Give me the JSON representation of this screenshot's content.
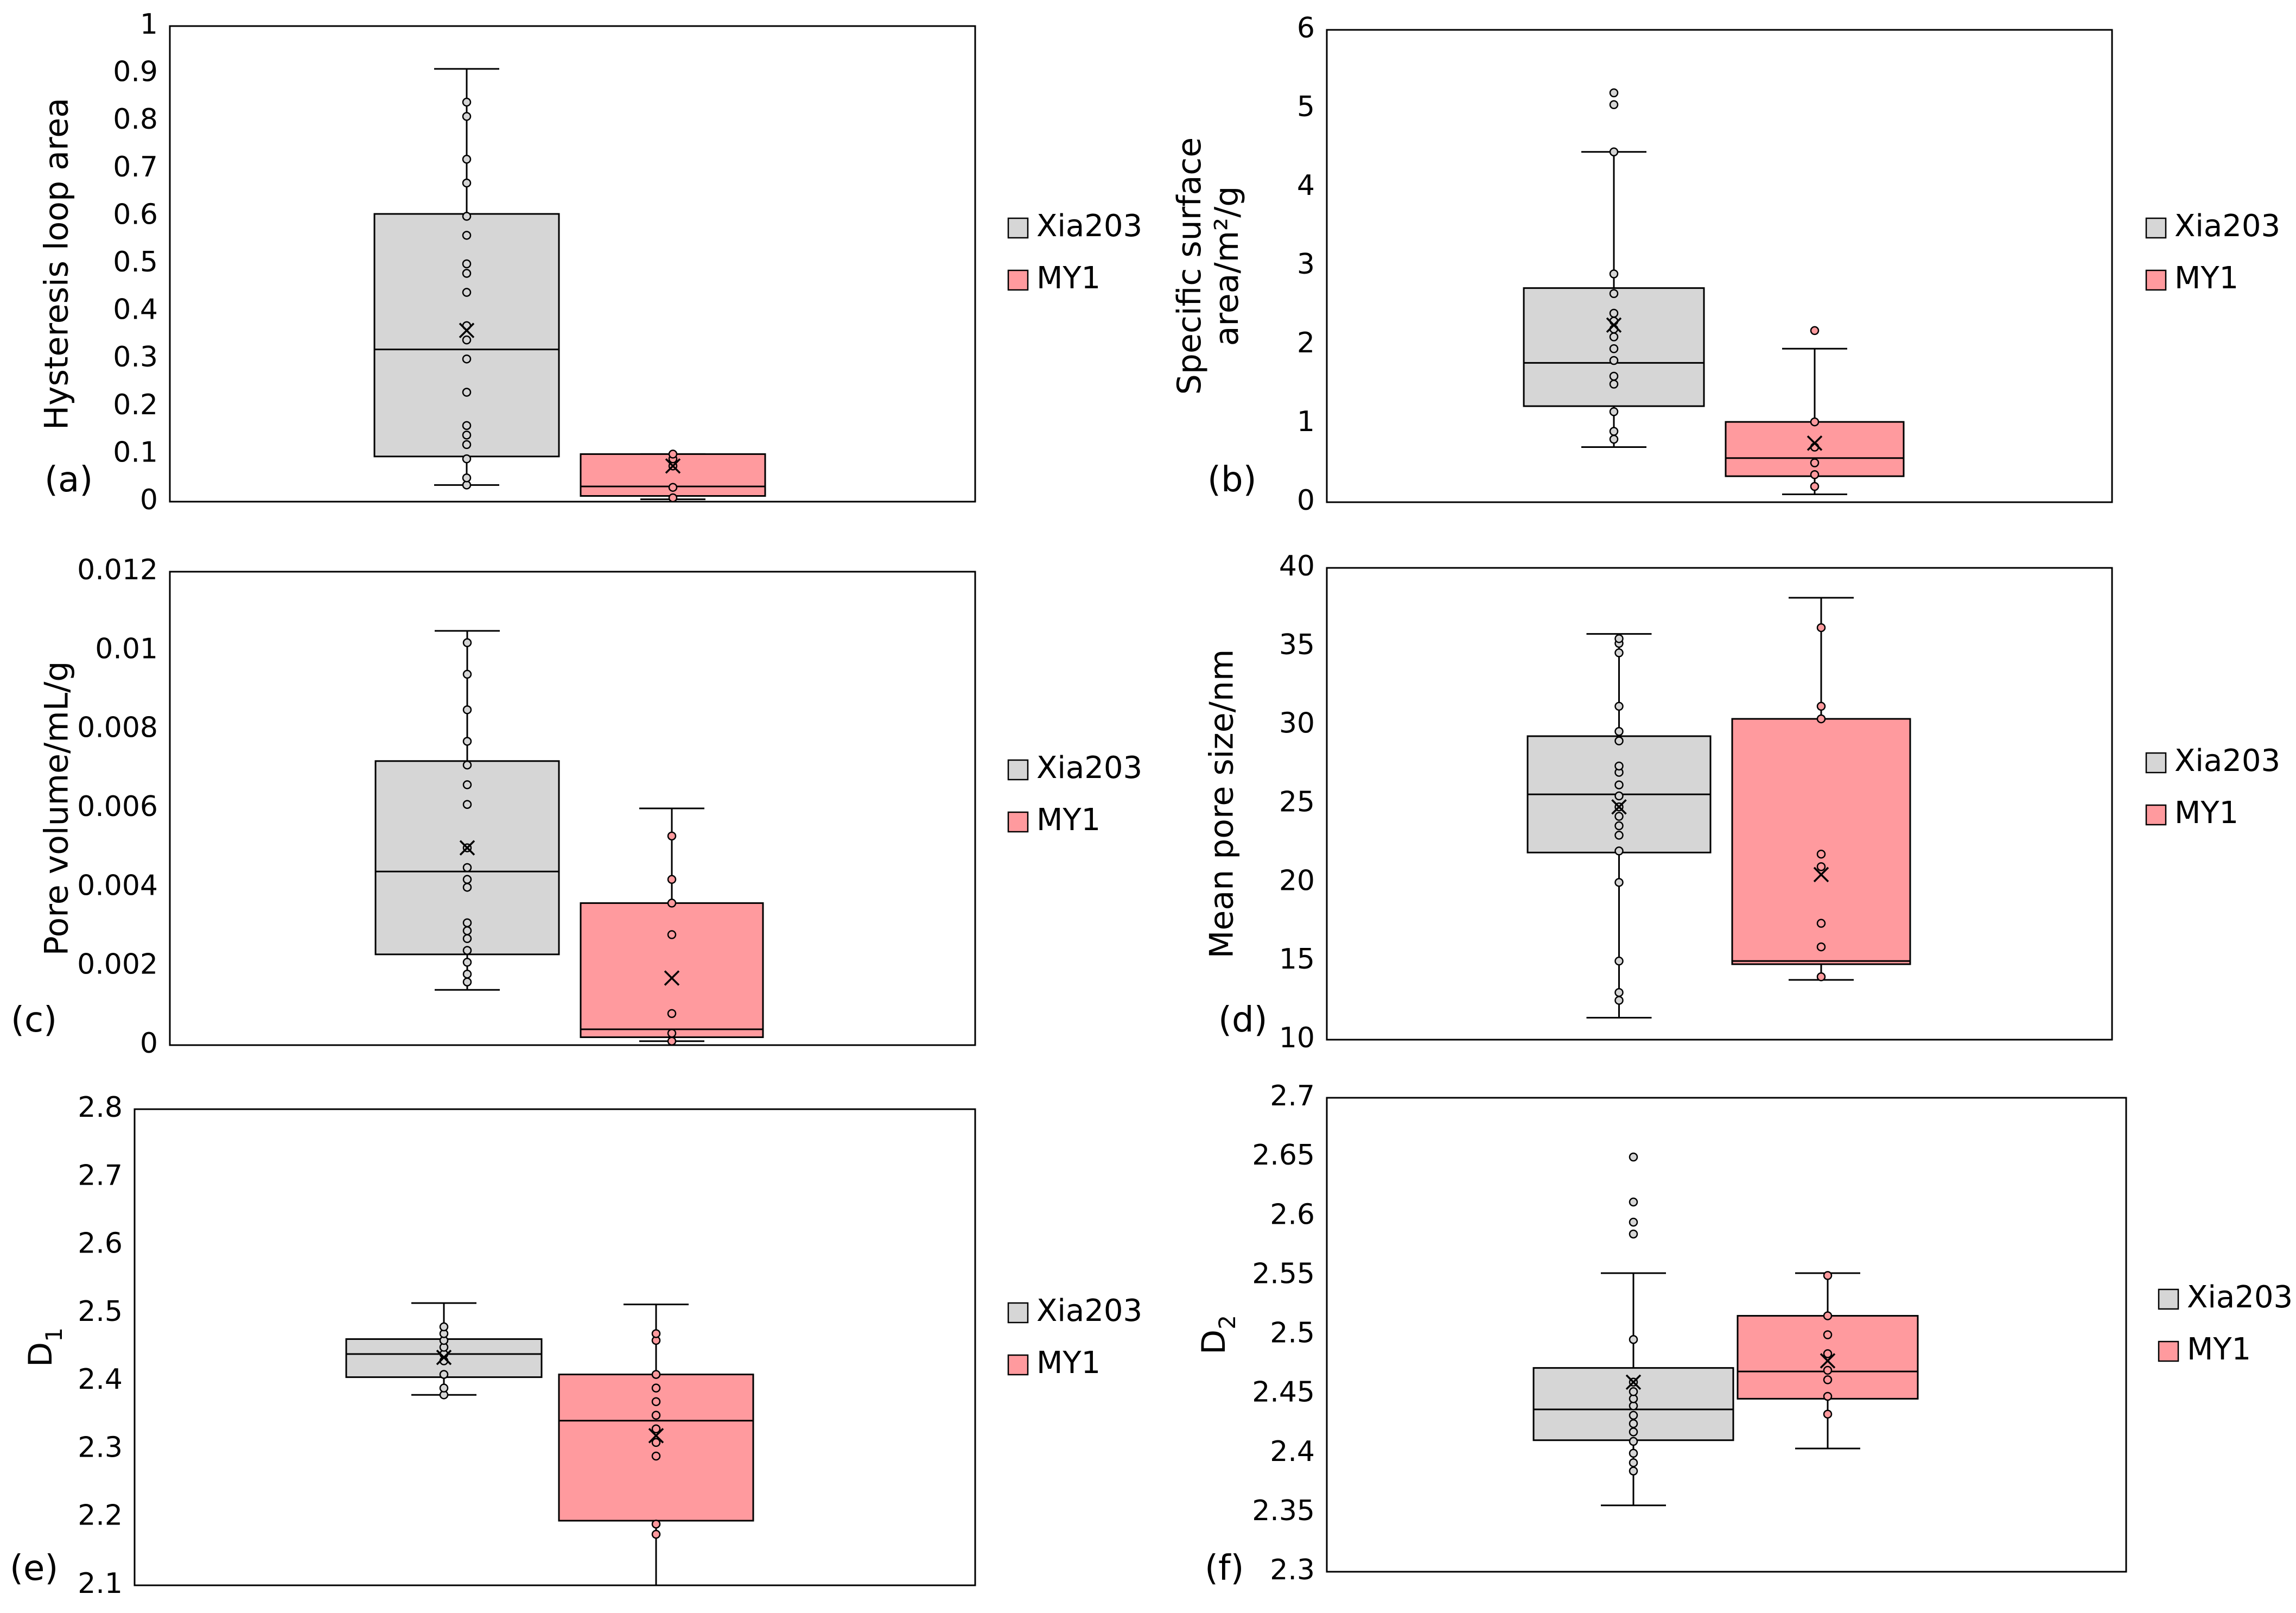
{
  "colors": {
    "xia203_fill": "#d6d6d6",
    "my1_fill": "#ff9a9e",
    "stroke": "#000000",
    "background": "#ffffff"
  },
  "legend": {
    "entries": [
      "Xia203",
      "MY1"
    ]
  },
  "chart_data": [
    {
      "id": "a",
      "panel_label": "(a)",
      "type": "box",
      "ylabel": "Hysteresis loop area",
      "ylim": [
        0,
        1
      ],
      "yticks": [
        "0",
        "0.1",
        "0.2",
        "0.3",
        "0.4",
        "0.5",
        "0.6",
        "0.7",
        "0.8",
        "0.9",
        "1"
      ],
      "legend_position": "right",
      "series": [
        {
          "name": "Xia203",
          "whisker_low": 0.035,
          "q1": 0.095,
          "median": 0.32,
          "q3": 0.605,
          "whisker_high": 0.91,
          "mean": 0.36,
          "points": [
            0.035,
            0.05,
            0.09,
            0.12,
            0.14,
            0.16,
            0.23,
            0.3,
            0.34,
            0.37,
            0.44,
            0.48,
            0.5,
            0.56,
            0.6,
            0.67,
            0.72,
            0.81,
            0.84
          ]
        },
        {
          "name": "MY1",
          "whisker_low": 0.005,
          "q1": 0.012,
          "median": 0.032,
          "q3": 0.1,
          "whisker_high": 0.1,
          "mean": 0.075,
          "points": [
            0.008,
            0.03,
            0.075,
            0.09,
            0.1
          ]
        }
      ]
    },
    {
      "id": "b",
      "panel_label": "(b)",
      "type": "box",
      "ylabel": "Specific surface area/m²/g",
      "ylim": [
        0,
        6
      ],
      "yticks": [
        "0",
        "1",
        "2",
        "3",
        "4",
        "5",
        "6"
      ],
      "legend_position": "right",
      "series": [
        {
          "name": "Xia203",
          "whisker_low": 0.7,
          "q1": 1.22,
          "median": 1.77,
          "q3": 2.72,
          "whisker_high": 4.45,
          "mean": 2.25,
          "points": [
            0.8,
            0.9,
            1.15,
            1.5,
            1.6,
            1.8,
            1.95,
            2.1,
            2.2,
            2.3,
            2.4,
            2.65,
            2.9,
            4.45,
            5.05,
            5.2
          ]
        },
        {
          "name": "MY1",
          "whisker_low": 0.1,
          "q1": 0.33,
          "median": 0.56,
          "q3": 1.02,
          "whisker_high": 1.95,
          "mean": 0.75,
          "points": [
            0.2,
            0.35,
            0.5,
            0.7,
            1.02,
            2.18
          ]
        }
      ]
    },
    {
      "id": "c",
      "panel_label": "(c)",
      "type": "box",
      "ylabel": "Pore volume/mL/g",
      "ylim": [
        0,
        0.012
      ],
      "yticks": [
        "0",
        "0.002",
        "0.004",
        "0.006",
        "0.008",
        "0.01",
        "0.012"
      ],
      "legend_position": "right",
      "series": [
        {
          "name": "Xia203",
          "whisker_low": 0.0014,
          "q1": 0.0023,
          "median": 0.0044,
          "q3": 0.0072,
          "whisker_high": 0.0105,
          "mean": 0.005,
          "points": [
            0.0016,
            0.0018,
            0.0021,
            0.0024,
            0.0027,
            0.0029,
            0.0031,
            0.004,
            0.0042,
            0.0045,
            0.005,
            0.0061,
            0.0066,
            0.0071,
            0.0077,
            0.0085,
            0.0094,
            0.0102
          ]
        },
        {
          "name": "MY1",
          "whisker_low": 0.0001,
          "q1": 0.0002,
          "median": 0.0004,
          "q3": 0.0036,
          "whisker_high": 0.006,
          "mean": 0.0017,
          "points": [
            0.0001,
            0.0003,
            0.0008,
            0.0028,
            0.0036,
            0.0042,
            0.0053
          ]
        }
      ]
    },
    {
      "id": "d",
      "panel_label": "(d)",
      "type": "box",
      "ylabel": "Mean pore size/nm",
      "ylim": [
        10,
        40
      ],
      "yticks": [
        "10",
        "15",
        "20",
        "25",
        "30",
        "35",
        "40"
      ],
      "legend_position": "right",
      "series": [
        {
          "name": "Xia203",
          "whisker_low": 11.4,
          "q1": 21.9,
          "median": 25.6,
          "q3": 29.3,
          "whisker_high": 35.8,
          "mean": 24.8,
          "points": [
            12.5,
            13.0,
            15.0,
            20.0,
            22.0,
            23.0,
            23.6,
            24.2,
            24.8,
            25.5,
            26.2,
            27.0,
            27.4,
            29.0,
            29.6,
            31.2,
            34.6,
            35.2,
            35.5
          ]
        },
        {
          "name": "MY1",
          "whisker_low": 13.8,
          "q1": 14.8,
          "median": 15.0,
          "q3": 30.4,
          "whisker_high": 38.1,
          "mean": 20.5,
          "points": [
            14.0,
            15.9,
            17.4,
            21.0,
            21.8,
            30.4,
            31.2,
            36.2
          ]
        }
      ]
    },
    {
      "id": "e",
      "panel_label": "(e)",
      "type": "box",
      "ylabel": "D1",
      "ylim": [
        2.1,
        2.8
      ],
      "yticks": [
        "2.1",
        "2.2",
        "2.3",
        "2.4",
        "2.5",
        "2.6",
        "2.7",
        "2.8"
      ],
      "legend_position": "right",
      "series": [
        {
          "name": "Xia203",
          "whisker_low": 2.38,
          "q1": 2.406,
          "median": 2.44,
          "q3": 2.462,
          "whisker_high": 2.515,
          "mean": 2.435,
          "points": [
            2.38,
            2.39,
            2.41,
            2.43,
            2.44,
            2.45,
            2.46,
            2.47,
            2.48
          ]
        },
        {
          "name": "MY1",
          "whisker_low": 2.1,
          "q1": 2.195,
          "median": 2.342,
          "q3": 2.41,
          "whisker_high": 2.513,
          "mean": 2.32,
          "points": [
            2.175,
            2.19,
            2.29,
            2.31,
            2.33,
            2.35,
            2.37,
            2.39,
            2.41,
            2.46,
            2.47
          ]
        }
      ]
    },
    {
      "id": "f",
      "panel_label": "(f)",
      "type": "box",
      "ylabel": "D2",
      "ylim": [
        2.3,
        2.7
      ],
      "yticks": [
        "2.3",
        "2.35",
        "2.4",
        "2.45",
        "2.5",
        "2.55",
        "2.6",
        "2.65",
        "2.7"
      ],
      "legend_position": "right",
      "series": [
        {
          "name": "Xia203",
          "whisker_low": 2.356,
          "q1": 2.411,
          "median": 2.437,
          "q3": 2.472,
          "whisker_high": 2.552,
          "mean": 2.46,
          "points": [
            2.385,
            2.392,
            2.4,
            2.41,
            2.418,
            2.425,
            2.432,
            2.44,
            2.446,
            2.452,
            2.46,
            2.496,
            2.585,
            2.595,
            2.612,
            2.65
          ]
        },
        {
          "name": "MY1",
          "whisker_low": 2.404,
          "q1": 2.446,
          "median": 2.469,
          "q3": 2.516,
          "whisker_high": 2.552,
          "mean": 2.478,
          "points": [
            2.433,
            2.448,
            2.462,
            2.47,
            2.484,
            2.5,
            2.516,
            2.55
          ]
        }
      ]
    }
  ]
}
